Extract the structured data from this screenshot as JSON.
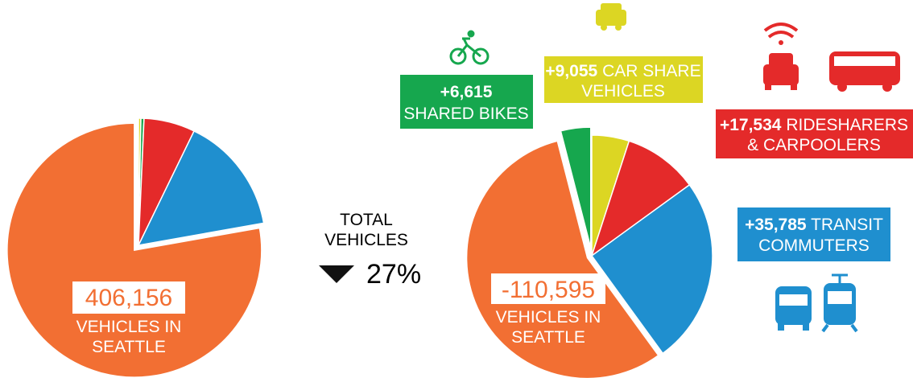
{
  "chart_data": [
    {
      "type": "pie",
      "values": [
        0.3,
        0.4,
        6.5,
        15,
        77.8
      ],
      "colors": [
        "#dcd623",
        "#16a74e",
        "#e42a2a",
        "#1f8fcf",
        "#f26f33"
      ],
      "annotations": [
        {
          "value": "406,156",
          "lines": [
            "VEHICLES IN",
            "SEATTLE"
          ]
        }
      ]
    },
    {
      "type": "pie",
      "values": [
        5,
        10,
        25,
        56,
        4
      ],
      "colors": [
        "#dcd623",
        "#e42a2a",
        "#1f8fcf",
        "#f26f33",
        "#16a74e"
      ],
      "annotations": [
        {
          "value": "-110,595",
          "lines": [
            "VEHICLES IN",
            "SEATTLE"
          ]
        },
        {
          "value": "+6,615",
          "lines": [
            "SHARED BIKES"
          ]
        },
        {
          "value": "+9,055",
          "lines": [
            "CAR SHARE",
            "VEHICLES"
          ]
        },
        {
          "value": "+17,534",
          "lines": [
            "RIDESHARERS",
            "& CARPOOLERS"
          ]
        },
        {
          "value": "+35,785",
          "lines": [
            "TRANSIT",
            "COMMUTERS"
          ]
        }
      ]
    }
  ],
  "summary": {
    "title": [
      "TOTAL",
      "VEHICLES"
    ],
    "change": "27%"
  }
}
